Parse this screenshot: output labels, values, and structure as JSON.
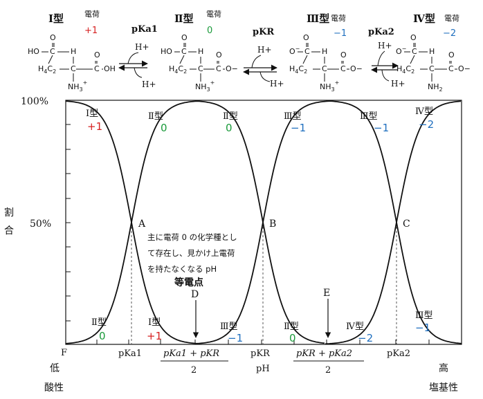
{
  "header": {
    "types": [
      {
        "name": "Ⅰ型",
        "charge_label": "電荷",
        "charge": "+1",
        "color": "#d62020",
        "formula": {
          "ho": "HO",
          "o_top": "O",
          "c": "C",
          "h": "H",
          "ch2": "H4C2",
          "ch": "C",
          "c2": "C",
          "oh": "OH",
          "nh3": "NH3+"
        }
      },
      {
        "name": "Ⅱ型",
        "charge_label": "電荷",
        "charge": "0",
        "color": "#1a9a3a",
        "formula": {
          "ho": "HO",
          "o_top": "O",
          "c": "C",
          "h": "H",
          "ch2": "H4C2",
          "ch": "C",
          "c2": "C",
          "oh": "O−",
          "nh3": "NH3+"
        }
      },
      {
        "name": "Ⅲ型",
        "charge_label": "電荷",
        "charge": "−1",
        "color": "#1f6fbf",
        "formula": {
          "ho": "−O",
          "o_top": "O",
          "c": "C",
          "h": "H",
          "ch2": "H4C2",
          "ch": "C",
          "c2": "C",
          "oh": "O−",
          "nh3": "NH3+"
        }
      },
      {
        "name": "Ⅳ型",
        "charge_label": "電荷",
        "charge": "−2",
        "color": "#1f6fbf",
        "formula": {
          "ho": "−O",
          "o_top": "O",
          "c": "C",
          "h": "H",
          "ch2": "H4C2",
          "ch": "C",
          "c2": "C",
          "oh": "O−",
          "nh3": "NH2"
        }
      }
    ],
    "equilibria": [
      {
        "label": "pKa1",
        "top": "H+",
        "bottom": "H+"
      },
      {
        "label": "pKR",
        "top": "H+",
        "bottom": "H+"
      },
      {
        "label": "pKa2",
        "top": "H+",
        "bottom": "H+"
      }
    ]
  },
  "chart": {
    "y_title": "割合",
    "y_ticks": [
      "100%",
      "50%"
    ],
    "x_ticks": [
      "F",
      "pKa1",
      "pKR",
      "pKa2"
    ],
    "x_label": "pH",
    "x_left_top": "低",
    "x_left_bottom": "酸性",
    "x_right_top": "高",
    "x_right_bottom": "塩基性",
    "frac1": {
      "num": "pKa1 + pKR",
      "den": "2"
    },
    "frac2": {
      "num": "pKR + pKa2",
      "den": "2"
    },
    "points": [
      "A",
      "B",
      "C"
    ],
    "markers": [
      "D",
      "E"
    ],
    "annotation": [
      "主に電荷 0 の化学種とし",
      "て存在し、見かけ上電荷",
      "を持たなくなる pH"
    ],
    "isoelectric": "等電点"
  },
  "chart_data": {
    "type": "line",
    "ylabel": "割合",
    "xlabel": "pH",
    "ylim": [
      0,
      100
    ],
    "x_ticks": [
      "pKa1",
      "pKR",
      "pKa2"
    ],
    "series_labels": [
      {
        "name": "Ⅰ型",
        "charge": "+1"
      },
      {
        "name": "Ⅱ型",
        "charge": "0"
      },
      {
        "name": "Ⅲ型",
        "charge": "−1"
      },
      {
        "name": "Ⅳ型",
        "charge": "−2"
      }
    ],
    "crossings": [
      {
        "label": "A",
        "x": "pKa1",
        "y": 50
      },
      {
        "label": "B",
        "x": "pKR",
        "y": 50
      },
      {
        "label": "C",
        "x": "pKa2",
        "y": 50
      }
    ],
    "curve_labels": [
      {
        "type": "Ⅰ型",
        "charge": "+1",
        "color": "#d62020"
      },
      {
        "type": "Ⅱ型",
        "charge": "0",
        "color": "#1a9a3a"
      },
      {
        "type": "Ⅱ型",
        "charge": "0",
        "color": "#1a9a3a"
      },
      {
        "type": "Ⅲ型",
        "charge": "−1",
        "color": "#1f6fbf"
      },
      {
        "type": "Ⅲ型",
        "charge": "−1",
        "color": "#1f6fbf"
      },
      {
        "type": "Ⅳ型",
        "charge": "−2",
        "color": "#1f6fbf"
      },
      {
        "type": "Ⅱ型",
        "charge": "0",
        "color": "#1a9a3a"
      },
      {
        "type": "Ⅰ型",
        "charge": "+1",
        "color": "#d62020"
      },
      {
        "type": "Ⅲ型",
        "charge": "−1",
        "color": "#1f6fbf"
      },
      {
        "type": "Ⅱ型",
        "charge": "0",
        "color": "#1a9a3a"
      },
      {
        "type": "Ⅳ型",
        "charge": "−2",
        "color": "#1f6fbf"
      },
      {
        "type": "Ⅲ型",
        "charge": "−1",
        "color": "#1f6fbf"
      }
    ]
  }
}
